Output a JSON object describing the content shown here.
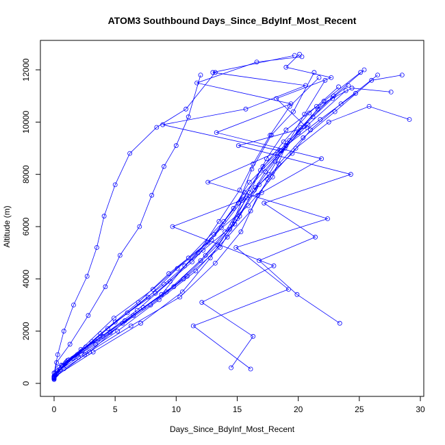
{
  "chart_data": {
    "type": "line",
    "title": "ATOM3 Southbound Days_Since_BdyInf_Most_Recent",
    "xlabel": "Days_Since_BdyInf_Most_Recent",
    "ylabel": "Altitude (m)",
    "xlim": [
      0,
      30
    ],
    "ylim": [
      0,
      12600
    ],
    "x_ticks": [
      0,
      5,
      10,
      15,
      20,
      25,
      30
    ],
    "y_ticks": [
      0,
      2000,
      4000,
      6000,
      8000,
      10000,
      12000
    ],
    "x_tick_labels": [
      "0",
      "5",
      "10",
      "15",
      "20",
      "25",
      "30"
    ],
    "y_tick_labels": [
      "0",
      "2000",
      "4000",
      "6000",
      "8000",
      "10000",
      "12000"
    ],
    "series_color": "#0000FF",
    "marker": "open-circle",
    "grid": false,
    "legend": "none",
    "series": [
      {
        "x": [
          0.0,
          0.3,
          1.5,
          3.8,
          6.9,
          9.4,
          12.6,
          15.1,
          16.2,
          17.8,
          19.6,
          21.3
        ],
        "y": [
          220,
          480,
          950,
          1900,
          3100,
          4200,
          5400,
          6900,
          8200,
          9500,
          10400,
          11900
        ]
      },
      {
        "x": [
          0.0,
          0.6,
          2.2,
          4.9,
          8.1,
          11.0,
          13.9,
          15.6,
          18.3,
          20.2,
          22.9,
          25.4
        ],
        "y": [
          260,
          700,
          1300,
          2500,
          3600,
          4800,
          6200,
          7300,
          8700,
          9800,
          11000,
          12000
        ]
      },
      {
        "x": [
          0.1,
          1.0,
          3.1,
          6.0,
          9.0,
          12.2,
          14.8,
          16.5,
          17.3,
          19.0,
          21.8,
          24.7
        ],
        "y": [
          300,
          820,
          1600,
          2700,
          3800,
          5100,
          6100,
          7500,
          8100,
          9100,
          10100,
          11100
        ]
      },
      {
        "x": [
          0.0,
          0.8,
          2.9,
          5.6,
          8.8,
          10.7,
          13.1,
          15.9,
          17.9,
          18.9,
          20.5,
          22.2
        ],
        "y": [
          180,
          560,
          1200,
          2300,
          3400,
          4500,
          5700,
          6800,
          7900,
          9000,
          10300,
          11600
        ]
      },
      {
        "x": [
          0.2,
          1.2,
          4.0,
          7.3,
          10.6,
          13.4,
          15.2,
          16.8,
          19.5,
          21.0,
          23.5,
          26.5
        ],
        "y": [
          350,
          900,
          1800,
          2900,
          4000,
          5300,
          6400,
          7600,
          8800,
          9700,
          10700,
          11800
        ]
      },
      {
        "x": [
          0.0,
          0.4,
          1.9,
          4.4,
          7.7,
          10.1,
          12.9,
          14.7,
          16.0,
          18.6,
          20.8,
          23.9
        ],
        "y": [
          240,
          620,
          1100,
          2100,
          3300,
          4400,
          5500,
          6700,
          7700,
          8900,
          9900,
          11200
        ]
      },
      {
        "x": [
          0.1,
          2.0,
          5.2,
          8.6,
          11.6,
          14.2,
          16.1,
          17.5,
          19.8,
          22.5,
          25.8,
          29.1
        ],
        "y": [
          400,
          1000,
          2000,
          3200,
          4300,
          5600,
          6600,
          7800,
          9000,
          10000,
          10600,
          10100
        ]
      },
      {
        "x": [
          0.0,
          0.9,
          3.4,
          6.5,
          9.8,
          12.4,
          14.4,
          15.4,
          17.1,
          19.3,
          21.6,
          24.1
        ],
        "y": [
          200,
          760,
          1500,
          2600,
          3700,
          4900,
          5900,
          7000,
          8300,
          9300,
          10500,
          11400
        ]
      },
      {
        "x": [
          0.0,
          1.6,
          4.6,
          7.9,
          10.9,
          13.6,
          15.0,
          16.4,
          18.1,
          20.0,
          22.1,
          25.1
        ],
        "y": [
          280,
          980,
          1950,
          3000,
          4100,
          5200,
          6300,
          7400,
          8500,
          9600,
          10800,
          11900
        ]
      },
      {
        "x": [
          0.1,
          0.7,
          2.6,
          5.8,
          9.2,
          12.0,
          14.0,
          15.8,
          17.6,
          19.1,
          21.2,
          22.8
        ],
        "y": [
          320,
          680,
          1400,
          2400,
          3500,
          4700,
          5800,
          7100,
          8000,
          9200,
          10200,
          10900
        ]
      },
      {
        "x": [
          0.0,
          2.5,
          6.3,
          10.3,
          13.2,
          15.3,
          16.7,
          18.4,
          20.4,
          23.0,
          26.0,
          28.5
        ],
        "y": [
          210,
          1100,
          2200,
          3300,
          4600,
          5800,
          7200,
          8400,
          9400,
          10400,
          11600,
          11800
        ]
      },
      {
        "x": [
          0.0,
          0.5,
          2.3,
          5.0,
          8.3,
          11.3,
          13.7,
          15.5,
          16.9,
          18.8,
          20.9,
          23.3
        ],
        "y": [
          190,
          540,
          1250,
          2350,
          3450,
          4650,
          5950,
          7050,
          8150,
          9250,
          10350,
          11350
        ]
      },
      {
        "x": [
          14.5,
          16.3,
          12.1,
          18.0,
          9.7,
          17.0,
          21.9,
          13.3,
          19.4,
          11.7,
          16.6,
          20.3
        ],
        "y": [
          600,
          1800,
          3100,
          4500,
          6000,
          7300,
          8600,
          9600,
          10700,
          11500,
          12300,
          12500
        ]
      },
      {
        "x": [
          16.1,
          11.4,
          19.2,
          14.9,
          22.4,
          12.6,
          18.5,
          8.9,
          15.7,
          20.6,
          13.0,
          19.7
        ],
        "y": [
          550,
          2200,
          3600,
          5200,
          6300,
          7700,
          8900,
          9900,
          10500,
          11400,
          11900,
          12550
        ]
      },
      {
        "x": [
          23.4,
          19.9,
          16.8,
          21.4,
          17.2,
          24.3,
          15.1,
          20.7,
          18.2,
          22.7,
          19.0,
          20.1
        ],
        "y": [
          2300,
          3400,
          4700,
          5600,
          6900,
          8000,
          9100,
          9800,
          10900,
          11700,
          12100,
          12600
        ]
      },
      {
        "x": [
          0.0,
          3.2,
          7.1,
          10.5,
          12.8,
          14.6,
          16.0,
          17.4,
          19.0,
          21.5,
          24.4,
          27.6
        ],
        "y": [
          250,
          1200,
          2300,
          3500,
          4800,
          6100,
          7300,
          8600,
          9700,
          10600,
          11300,
          11150
        ]
      },
      {
        "x": [
          0.0,
          1.1,
          3.6,
          6.8,
          9.5,
          11.8,
          13.5,
          15.2,
          16.3,
          17.7,
          19.3,
          21.7
        ],
        "y": [
          230,
          880,
          1700,
          2800,
          3900,
          5000,
          6200,
          7400,
          8400,
          9500,
          10600,
          11700
        ]
      },
      {
        "x": [
          0.0,
          0.2,
          1.3,
          2.8,
          4.2,
          5.4,
          7.0,
          8.0,
          9.0,
          10.0,
          11.0,
          12.0
        ],
        "y": [
          150,
          800,
          1500,
          2600,
          3700,
          4900,
          6000,
          7200,
          8300,
          9100,
          10200,
          11800
        ]
      },
      {
        "x": [
          0.0,
          0.3,
          0.8,
          1.6,
          2.7,
          3.5,
          4.1,
          5.0,
          6.2,
          8.4,
          10.8,
          13.2
        ],
        "y": [
          400,
          1100,
          2000,
          3000,
          4100,
          5200,
          6400,
          7600,
          8800,
          9800,
          10500,
          11900
        ]
      }
    ]
  }
}
